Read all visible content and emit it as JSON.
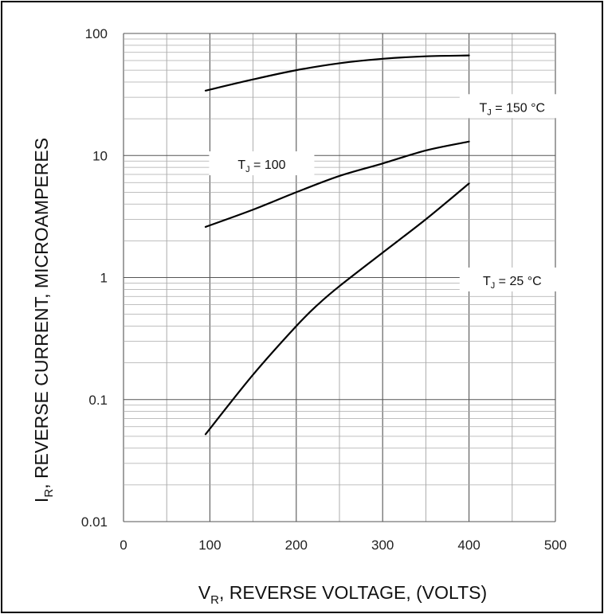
{
  "chart_data": {
    "type": "line",
    "title": "",
    "x_axis": {
      "label_main": "V",
      "label_sub": "R",
      "label_rest": ", REVERSE VOLTAGE, (VOLTS)",
      "range": [
        0,
        500
      ],
      "ticks": [
        0,
        100,
        200,
        300,
        400,
        500
      ],
      "tick_labels": [
        "0",
        "100",
        "200",
        "300",
        "400",
        "500"
      ]
    },
    "y_axis": {
      "label_main": "I",
      "label_sub": "R",
      "label_rest": ", REVERSE CURRENT, MICROAMPERES",
      "scale": "log",
      "range": [
        0.01,
        100
      ],
      "ticks": [
        0.01,
        0.1,
        1,
        10,
        100
      ],
      "tick_labels": [
        "0.01",
        "0.1",
        "1",
        "10",
        "100"
      ]
    },
    "grid": true,
    "series": [
      {
        "name": "T_J = 150 °C",
        "label_main": "T",
        "label_sub": "J",
        "label_rest": " = 150 °C",
        "x": [
          95,
          150,
          200,
          250,
          300,
          350,
          400
        ],
        "y": [
          34,
          42,
          50,
          57,
          62,
          65,
          66
        ]
      },
      {
        "name": "T_J = 100",
        "label_main": "T",
        "label_sub": "J",
        "label_rest": " = 100",
        "x": [
          95,
          150,
          200,
          250,
          300,
          350,
          400
        ],
        "y": [
          2.6,
          3.6,
          5.0,
          6.8,
          8.6,
          11,
          13
        ]
      },
      {
        "name": "T_J = 25 °C",
        "label_main": "T",
        "label_sub": "J",
        "label_rest": " = 25 °C",
        "x": [
          95,
          150,
          200,
          225,
          250,
          300,
          350,
          400
        ],
        "y": [
          0.052,
          0.16,
          0.4,
          0.6,
          0.85,
          1.6,
          3.0,
          5.9
        ]
      }
    ]
  }
}
